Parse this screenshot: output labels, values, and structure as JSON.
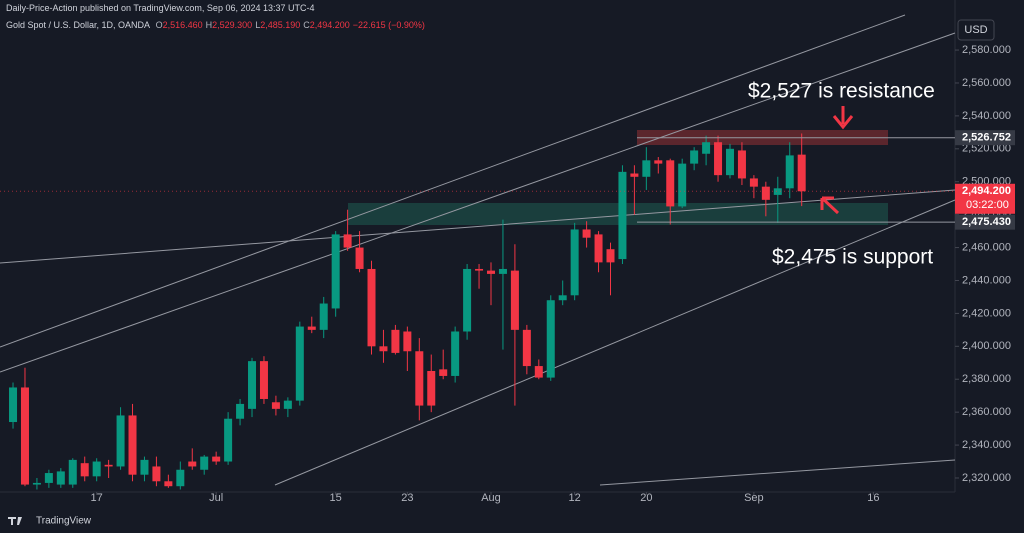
{
  "header": {
    "publisher": "Daily-Price-Action published on TradingView.com, Sep 06, 2024 13:37 UTC-4",
    "symbol": "Gold Spot / U.S. Dollar, 1D, OANDA",
    "ohlc": [
      {
        "key": "O",
        "value": "2,516.460"
      },
      {
        "key": "H",
        "value": "2,529.300"
      },
      {
        "key": "L",
        "value": "2,485.190"
      },
      {
        "key": "C",
        "value": "2,494.200"
      }
    ],
    "change": "−22.615 (−0.90%)"
  },
  "currency": "USD",
  "footer": "TradingView",
  "chart_data": {
    "type": "candlestick",
    "open": [
      2354,
      2375,
      2316,
      2317,
      2316,
      2316,
      2329,
      2321,
      2328,
      2327,
      2358,
      2322,
      2327,
      2318,
      2315,
      2330,
      2325,
      2333,
      2330,
      2356,
      2362,
      2391,
      2366,
      2362,
      2367,
      2412,
      2410,
      2423,
      2468,
      2460,
      2447,
      2400,
      2410,
      2409,
      2397,
      2385,
      2386,
      2382,
      2409,
      2447,
      2446,
      2444,
      2446,
      2410,
      2388,
      2381,
      2428,
      2431,
      2471,
      2468,
      2459,
      2453,
      2505,
      2503,
      2513,
      2513,
      2485,
      2511,
      2517,
      2524,
      2504,
      2519,
      2502,
      2497,
      2492,
      2496,
      2516.46
    ],
    "high": [
      2378,
      2387,
      2320,
      2325,
      2326,
      2332,
      2333,
      2332,
      2331,
      2363,
      2365,
      2333,
      2333,
      2322,
      2330,
      2338,
      2334,
      2336,
      2360,
      2368,
      2393,
      2394,
      2370,
      2369,
      2415,
      2418,
      2430,
      2470,
      2483,
      2470,
      2452,
      2410,
      2413,
      2412,
      2405,
      2395,
      2398,
      2412,
      2450,
      2450,
      2451,
      2477,
      2462,
      2413,
      2392,
      2431,
      2440,
      2475,
      2476,
      2470,
      2463,
      2510,
      2510,
      2521,
      2515,
      2514,
      2514,
      2521,
      2528,
      2528,
      2523,
      2524,
      2504,
      2500,
      2503,
      2524,
      2529.3
    ],
    "low": [
      2350,
      2315,
      2313,
      2314,
      2314,
      2314,
      2318,
      2318,
      2320,
      2325,
      2318,
      2318,
      2315,
      2314,
      2313,
      2325,
      2322,
      2328,
      2328,
      2352,
      2357,
      2365,
      2358,
      2357,
      2364,
      2408,
      2405,
      2418,
      2458,
      2445,
      2395,
      2390,
      2395,
      2385,
      2355,
      2360,
      2380,
      2378,
      2404,
      2435,
      2425,
      2398,
      2364,
      2383,
      2380,
      2379,
      2425,
      2428,
      2460,
      2445,
      2431,
      2450,
      2480,
      2495,
      2505,
      2474,
      2484,
      2507,
      2510,
      2500,
      2502,
      2498,
      2490,
      2479,
      2475,
      2490,
      2485.19
    ],
    "close": [
      2375,
      2316,
      2317,
      2323,
      2324,
      2331,
      2321,
      2330,
      2327,
      2358,
      2322,
      2331,
      2318,
      2315,
      2325,
      2327,
      2333,
      2330,
      2356,
      2365,
      2391,
      2368,
      2362,
      2367,
      2412,
      2410,
      2426,
      2468,
      2460,
      2447,
      2400,
      2397,
      2396,
      2397,
      2364,
      2364,
      2382,
      2409,
      2447,
      2446,
      2444,
      2447,
      2410,
      2388,
      2381,
      2428,
      2431,
      2471,
      2466,
      2451,
      2451,
      2506,
      2503,
      2513,
      2511,
      2485,
      2511,
      2519,
      2524,
      2504,
      2520,
      2502,
      2497,
      2489,
      2496,
      2516,
      2494.2
    ],
    "up_color": "#089981",
    "down_color": "#f23645",
    "ylim": [
      2312.7,
      2601.3
    ],
    "yticks": [
      {
        "value": 2320,
        "label": "2,320.000"
      },
      {
        "value": 2340,
        "label": "2,340.000"
      },
      {
        "value": 2360,
        "label": "2,360.000"
      },
      {
        "value": 2380,
        "label": "2,380.000"
      },
      {
        "value": 2400,
        "label": "2,400.000"
      },
      {
        "value": 2420,
        "label": "2,420.000"
      },
      {
        "value": 2440,
        "label": "2,440.000"
      },
      {
        "value": 2460,
        "label": "2,460.000"
      },
      {
        "value": 2480,
        "label": "2,480.000"
      },
      {
        "value": 2500,
        "label": "2,500.000"
      },
      {
        "value": 2520,
        "label": "2,520.000"
      },
      {
        "value": 2540,
        "label": "2,540.000"
      },
      {
        "value": 2560,
        "label": "2,560.000"
      },
      {
        "value": 2580,
        "label": "2,580.000"
      }
    ],
    "xlim": [
      -1.09,
      78.83
    ],
    "xticks": [
      {
        "value": 7,
        "label": "17"
      },
      {
        "value": 17,
        "label": "Jul"
      },
      {
        "value": 27,
        "label": "15"
      },
      {
        "value": 33,
        "label": "23"
      },
      {
        "value": 40,
        "label": "Aug"
      },
      {
        "value": 47,
        "label": "12"
      },
      {
        "value": 53,
        "label": "20"
      },
      {
        "value": 62,
        "label": "Sep"
      },
      {
        "value": 72,
        "label": "16"
      }
    ],
    "price_labels": [
      {
        "value": 2526.752,
        "label": "2,526.752"
      },
      {
        "value": 2494.2,
        "label": "2,494.200",
        "countdown": "03:22:00"
      },
      {
        "value": 2475.43,
        "label": "2,475.430"
      }
    ],
    "annotations": [
      "$2,527 is resistance",
      "$2,475 is support"
    ]
  }
}
